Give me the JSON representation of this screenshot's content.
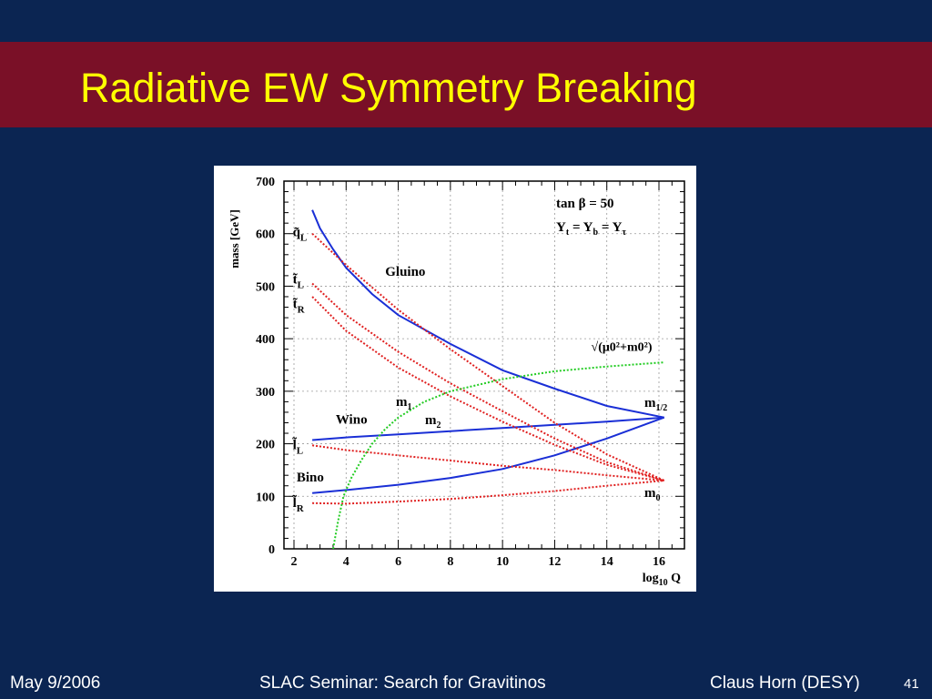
{
  "slide": {
    "title": "Radiative EW Symmetry Breaking",
    "footer_left": "May 9/2006",
    "footer_center": "SLAC Seminar: Search for Gravitinos",
    "footer_right": "Claus Horn (DESY)",
    "page_number": "41"
  },
  "colors": {
    "background": "#0b2552",
    "title_bar": "#7a1027",
    "title_text": "#ffff00",
    "gaugino_curves": "#1a2fd6",
    "sfermion_curves": "#e02020",
    "higgs_curve": "#22cc22"
  },
  "chart_data": {
    "type": "line",
    "xlabel": "log10 Q",
    "ylabel": "mass [GeV]",
    "xlim": [
      1.6,
      17.0
    ],
    "ylim": [
      0,
      700
    ],
    "x_ticks": [
      "2",
      "4",
      "6",
      "8",
      "10",
      "12",
      "14",
      "16"
    ],
    "y_ticks": [
      "0",
      "100",
      "200",
      "300",
      "400",
      "500",
      "600",
      "700"
    ],
    "grid": true,
    "annotations": [
      "tan β = 50",
      "Yt = Yb = Yτ",
      "m1/2",
      "m0",
      "m1",
      "m2"
    ],
    "series": [
      {
        "name": "Gluino",
        "label_pos": [
          5.5,
          520
        ],
        "color": "blue",
        "dash": false,
        "x": [
          2.7,
          3.0,
          3.5,
          4.0,
          5.0,
          6.0,
          8.0,
          10.0,
          12.0,
          14.0,
          16.2
        ],
        "y": [
          645,
          610,
          570,
          535,
          485,
          445,
          390,
          340,
          305,
          272,
          250
        ]
      },
      {
        "name": "Wino",
        "label_pos": [
          3.6,
          238
        ],
        "color": "blue",
        "dash": false,
        "x": [
          2.7,
          4.0,
          6.0,
          8.0,
          10.0,
          12.0,
          14.0,
          16.2
        ],
        "y": [
          207,
          212,
          218,
          224,
          230,
          236,
          242,
          250
        ]
      },
      {
        "name": "Bino",
        "label_pos": [
          2.1,
          128
        ],
        "color": "blue",
        "dash": false,
        "x": [
          2.7,
          4.0,
          6.0,
          8.0,
          10.0,
          12.0,
          14.0,
          16.2
        ],
        "y": [
          106,
          112,
          122,
          135,
          152,
          178,
          210,
          250
        ]
      },
      {
        "name": "q̃L",
        "label_pos": [
          1.95,
          595
        ],
        "color": "red",
        "dash": true,
        "x": [
          2.7,
          4.0,
          6.0,
          8.0,
          10.0,
          12.0,
          14.0,
          16.2
        ],
        "y": [
          600,
          540,
          455,
          380,
          310,
          240,
          180,
          130
        ]
      },
      {
        "name": "t̃L",
        "label_pos": [
          1.95,
          505
        ],
        "color": "red",
        "dash": true,
        "x": [
          2.7,
          4.0,
          6.0,
          8.0,
          10.0,
          12.0,
          14.0,
          16.2
        ],
        "y": [
          505,
          445,
          375,
          315,
          262,
          210,
          165,
          130
        ]
      },
      {
        "name": "t̃R",
        "label_pos": [
          1.95,
          458
        ],
        "color": "red",
        "dash": true,
        "x": [
          2.7,
          4.0,
          6.0,
          8.0,
          10.0,
          12.0,
          14.0,
          16.2
        ],
        "y": [
          480,
          415,
          345,
          290,
          242,
          198,
          160,
          130
        ]
      },
      {
        "name": "l̃L",
        "label_pos": [
          1.95,
          190
        ],
        "color": "red",
        "dash": true,
        "x": [
          2.7,
          4.0,
          6.0,
          8.0,
          10.0,
          12.0,
          14.0,
          16.2
        ],
        "y": [
          197,
          188,
          178,
          168,
          158,
          150,
          140,
          130
        ]
      },
      {
        "name": "l̃R",
        "label_pos": [
          1.95,
          80
        ],
        "color": "red",
        "dash": true,
        "x": [
          2.7,
          4.0,
          6.0,
          8.0,
          10.0,
          12.0,
          14.0,
          16.2
        ],
        "y": [
          87,
          86,
          90,
          95,
          102,
          110,
          120,
          130
        ]
      },
      {
        "name": "√(μ0²+m0²)",
        "label_pos": [
          13.4,
          377
        ],
        "color": "green",
        "dash": true,
        "x": [
          3.5,
          3.7,
          3.9,
          4.2,
          4.6,
          5.0,
          5.5,
          6.0,
          7.0,
          8.0,
          10.0,
          12.0,
          14.0,
          16.2
        ],
        "y": [
          0,
          55,
          100,
          135,
          170,
          200,
          228,
          250,
          280,
          300,
          323,
          338,
          347,
          355
        ]
      }
    ]
  }
}
